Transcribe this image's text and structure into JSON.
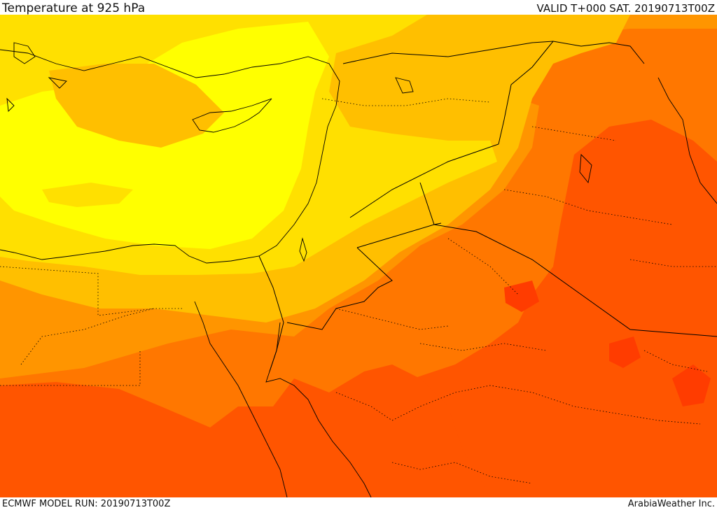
{
  "header": {
    "title": "Temperature at 925 hPa",
    "valid": "VALID T+000 SAT. 20190713T00Z"
  },
  "footer": {
    "model_run": "ECMWF MODEL RUN: 20190713T00Z",
    "credit": "ArabiaWeather Inc."
  },
  "map": {
    "field": "temperature-925hPa",
    "palette": {
      "band_1": "#ffff00",
      "band_2": "#ffe000",
      "band_3": "#ffbf00",
      "band_4": "#ff9500",
      "band_5": "#ff7700",
      "band_6": "#ff5500",
      "band_7": "#ff3c00",
      "band_8": "#ff2000"
    },
    "lines": {
      "coastline": "#000000",
      "border": "#000000"
    }
  }
}
